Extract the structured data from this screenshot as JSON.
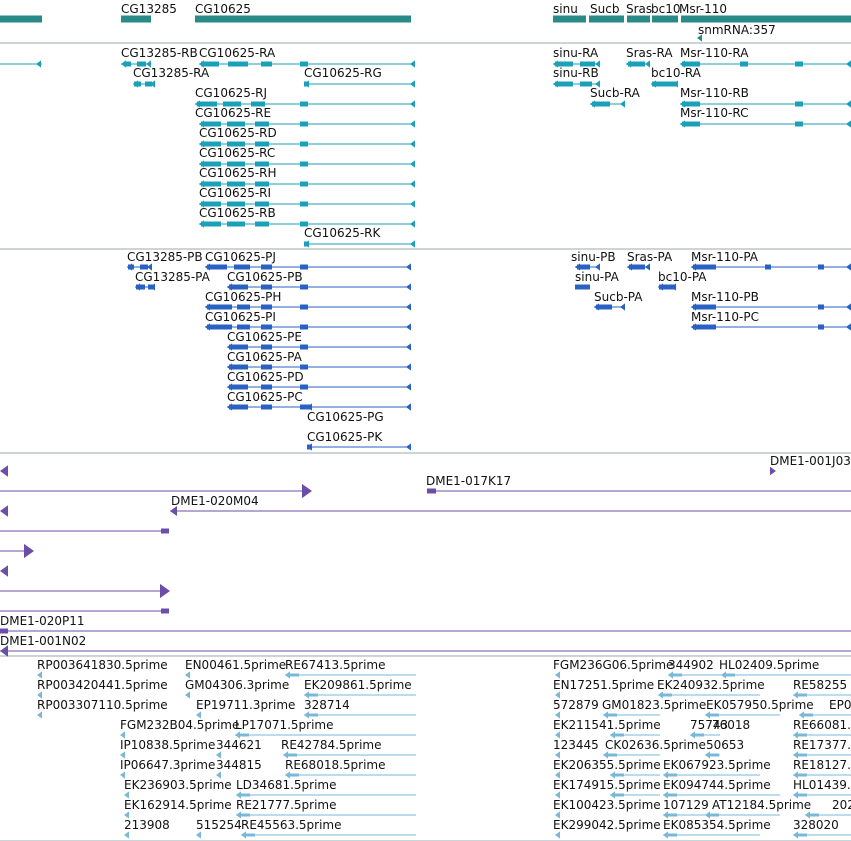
{
  "colors": {
    "gene": "#2a8a88",
    "transcript": "#1aa0b8",
    "protein": "#2a62c4",
    "clone": "#6b4ea8",
    "est": "#7ab8d8",
    "divider": "#9aa8b0"
  },
  "gene_track": {
    "labels": [
      "CG13285",
      "CG10625",
      "sinu",
      "Sucb",
      "Sras",
      "bc10",
      "Msr-110",
      "snmRNA:357"
    ]
  },
  "transcript_track": {
    "labels": [
      "CG13285-RB",
      "CG10625-RA",
      "CG13285-RA",
      "CG10625-RG",
      "CG10625-RJ",
      "CG10625-RE",
      "CG10625-RD",
      "CG10625-RC",
      "CG10625-RH",
      "CG10625-RI",
      "CG10625-RB",
      "CG10625-RK",
      "sinu-RA",
      "Sras-RA",
      "Msr-110-RA",
      "sinu-RB",
      "bc10-RA",
      "Sucb-RA",
      "Msr-110-RB",
      "Msr-110-RC"
    ]
  },
  "protein_track": {
    "labels": [
      "CG13285-PB",
      "CG10625-PJ",
      "CG13285-PA",
      "CG10625-PB",
      "CG10625-PH",
      "CG10625-PI",
      "CG10625-PE",
      "CG10625-PA",
      "CG10625-PD",
      "CG10625-PC",
      "CG10625-PG",
      "CG10625-PK",
      "sinu-PB",
      "Sras-PA",
      "Msr-110-PA",
      "sinu-PA",
      "bc10-PA",
      "Sucb-PA",
      "Msr-110-PB",
      "Msr-110-PC"
    ]
  },
  "clone_track": {
    "labels": [
      "DME1-001J03",
      "DME1-017K17",
      "DME1-020M04",
      "DME1-020P11",
      "DME1-001N02"
    ]
  },
  "est_track": {
    "labels": [
      "RP003641830.5prime",
      "EN00461.5prime",
      "RE67413.5prime",
      "RP003420441.5prime",
      "GM04306.3prime",
      "EK209861.5prime",
      "RP003307110.5prime",
      "EP19711.3prime",
      "328714",
      "FGM232B04.5prime",
      "LP17071.5prime",
      "IP10838.5prime",
      "344621",
      "RE42784.5prime",
      "IP06647.3prime",
      "344815",
      "RE68018.5prime",
      "EK236903.5prime",
      "LD34681.5prime",
      "EK162914.5prime",
      "RE21777.5prime",
      "213908",
      "515254",
      "RE45563.5prime",
      "FGM236G06.5prime",
      "344902",
      "HL02409.5prime",
      "EN17251.5prime",
      "EK240932.5prime",
      "RE58255",
      "572879",
      "GM01823.5prime",
      "EK057950.5prime",
      "EP0",
      "EK211541.5prime",
      "75743",
      "76018",
      "RE66081.",
      "123445",
      "CK02636.5prime",
      "50653",
      "RE17377.",
      "EK206355.5prime",
      "EK067923.5prime",
      "RE18127.",
      "EK174915.5prime",
      "EK094744.5prime",
      "HL01439.",
      "EK100423.5prime",
      "107129",
      "AT12184.5prime",
      "202",
      "EK299042.5prime",
      "EK085354.5prime",
      "328020"
    ]
  }
}
